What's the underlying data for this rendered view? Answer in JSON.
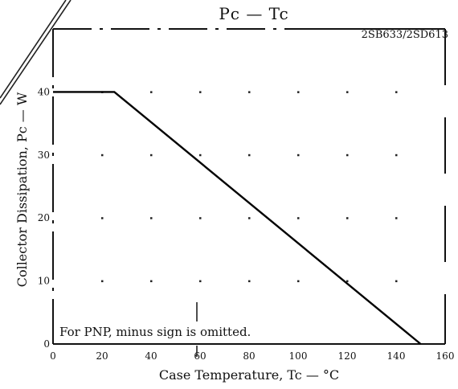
{
  "chart_data": {
    "type": "line",
    "title": "Pc — Tc",
    "part_number": "2SB633/2SD613",
    "xlabel": "Case Temperature, Tc — °C",
    "ylabel": "Collector Dissipation, Pc — W",
    "xlim": [
      0,
      160
    ],
    "ylim": [
      0,
      50
    ],
    "x_ticks": [
      "0",
      "20",
      "40",
      "60",
      "80",
      "100",
      "120",
      "140",
      "160"
    ],
    "y_ticks": [
      "0",
      "10",
      "20",
      "30",
      "40"
    ],
    "grid": true,
    "note": "For PNP, minus sign is omitted.",
    "series": [
      {
        "x": [
          0,
          25,
          150
        ],
        "y": [
          40,
          40,
          0
        ]
      }
    ]
  }
}
